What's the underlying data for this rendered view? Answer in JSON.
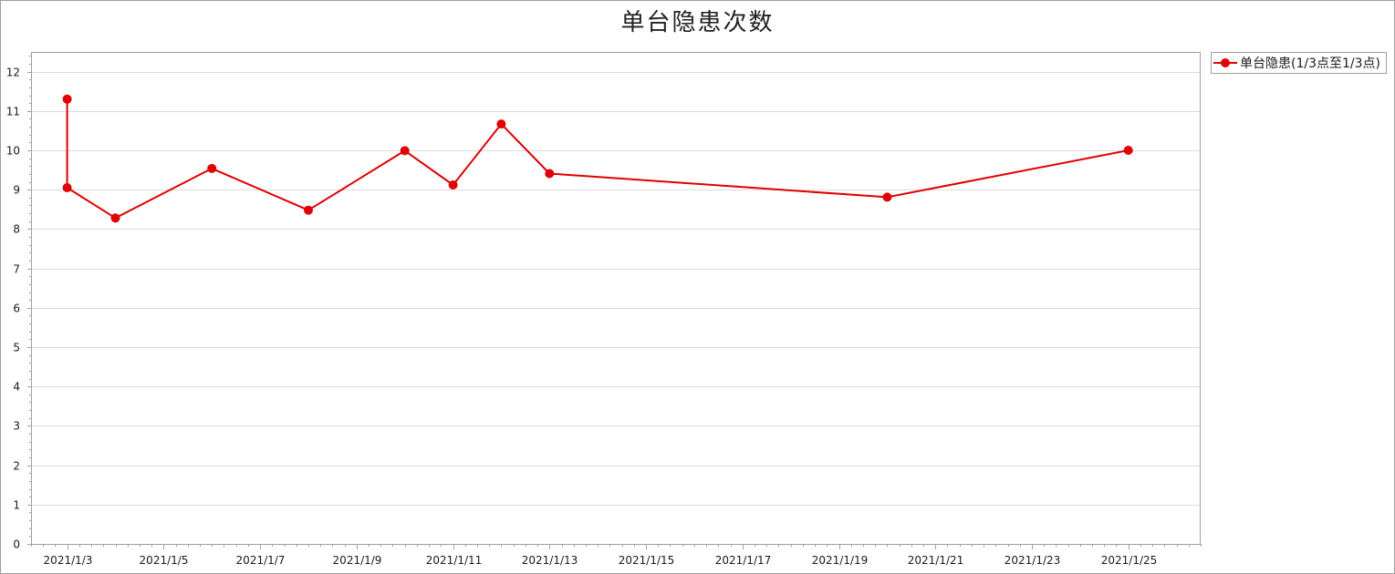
{
  "chart_data": {
    "type": "line",
    "title": "单台隐患次数",
    "xlabel": "",
    "ylabel": "",
    "x": [
      "2021/1/3",
      "2021/1/3",
      "2021/1/4",
      "2021/1/6",
      "2021/1/8",
      "2021/1/10",
      "2021/1/11",
      "2021/1/12",
      "2021/1/13",
      "2021/1/20",
      "2021/1/25"
    ],
    "series": [
      {
        "name": "单台隐患(1/3点至1/3点)",
        "color": "#e00000",
        "values": [
          11.3,
          9.05,
          8.28,
          9.54,
          8.48,
          9.99,
          9.12,
          10.67,
          9.41,
          8.81,
          10.0
        ]
      }
    ],
    "x_ticks": [
      "2021/1/3",
      "2021/1/5",
      "2021/1/7",
      "2021/1/9",
      "2021/1/11",
      "2021/1/13",
      "2021/1/15",
      "2021/1/17",
      "2021/1/19",
      "2021/1/21",
      "2021/1/23",
      "2021/1/25"
    ],
    "xlim": [
      "2021/1/2 6:00",
      "2021/1/26 12:00"
    ],
    "ylim": [
      0,
      12.5
    ],
    "y_ticks": [
      0,
      1,
      2,
      3,
      4,
      5,
      6,
      7,
      8,
      9,
      10,
      11,
      12
    ],
    "grid": "horizontal",
    "legend_position": "top-right-outside",
    "colors": {
      "line": "#e00000",
      "grid": "#dcdcdc",
      "axis": "#a0a0a0"
    }
  }
}
